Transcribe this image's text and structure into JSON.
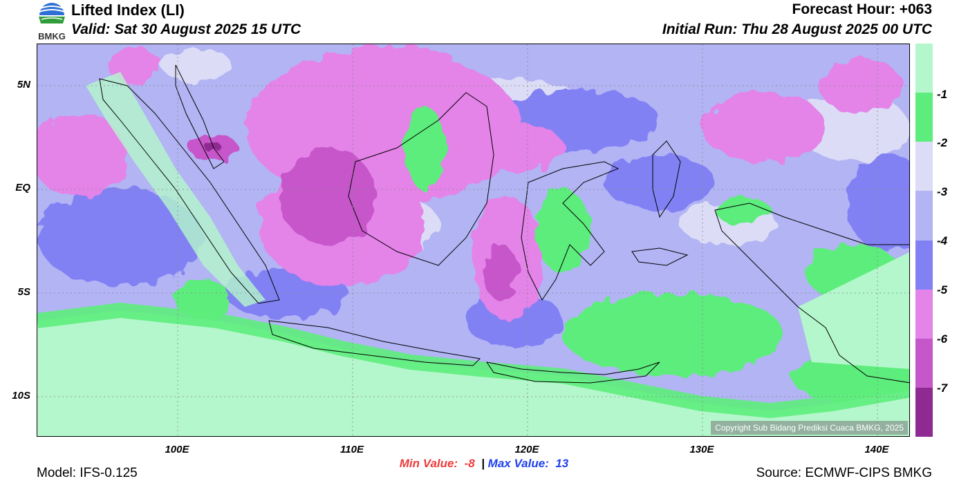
{
  "header": {
    "title": "Lifted Index (LI)",
    "valid": "Valid: Sat 30 August 2025 15 UTC",
    "forecast_hour": "Forecast Hour: +063",
    "initial_run": "Initial Run: Thu 28 August 2025 00 UTC"
  },
  "logo": {
    "text": "BMKG",
    "icon": "bmkg-logo-icon"
  },
  "axes": {
    "lat_ticks": [
      "5N",
      "EQ",
      "5S",
      "10S"
    ],
    "lon_ticks": [
      "100E",
      "110E",
      "120E",
      "130E",
      "140E"
    ],
    "grid": true
  },
  "colorbar": {
    "labels": [
      "-1",
      "-2",
      "-3",
      "-4",
      "-5",
      "-6",
      "-7"
    ],
    "colors": [
      "#b4f7cc",
      "#5ded7c",
      "#dcdcf6",
      "#b2b4f4",
      "#8181f4",
      "#e483e8",
      "#c657ca",
      "#8f2a93"
    ]
  },
  "stats": {
    "min_label": "Min Value:",
    "min_value": "-8",
    "separator": "|",
    "max_label": "Max Value:",
    "max_value": "13"
  },
  "footer": {
    "model": "Model: IFS-0.125",
    "source": "Source: ECMWF-CIPS BMKG",
    "copyright": "Copyright Sub Bidang Prediksi Cuaca BMKG, 2025"
  }
}
